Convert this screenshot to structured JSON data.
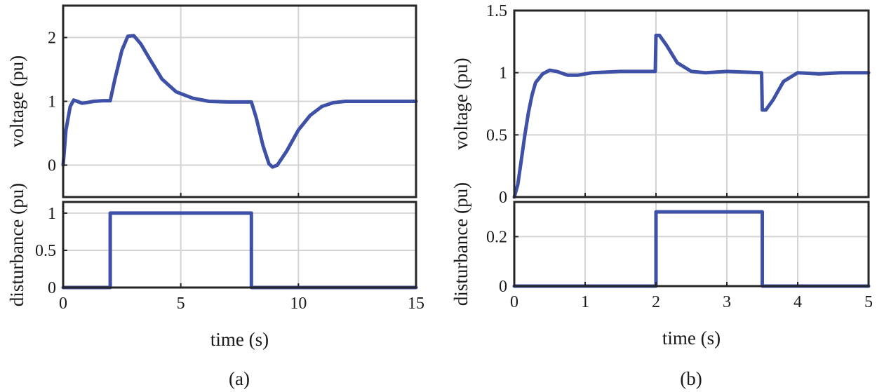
{
  "colors": {
    "line": "#3f51a6",
    "grid": "#d4d4d4",
    "frame": "#262626"
  },
  "chart_data": [
    {
      "type": "line",
      "panel": "(a)",
      "ylabel": "voltage (pu)",
      "xlim": [
        0,
        15
      ],
      "ylim": [
        -0.5,
        2.5
      ],
      "xticks": [
        0,
        5,
        10,
        15
      ],
      "yticks": [
        0,
        1,
        2
      ],
      "yticklabels": [
        "0",
        "1",
        "2"
      ],
      "grid": true,
      "series": [
        {
          "values": [
            [
              0,
              0
            ],
            [
              0.12,
              0.55
            ],
            [
              0.3,
              0.92
            ],
            [
              0.45,
              1.02
            ],
            [
              0.6,
              1.0
            ],
            [
              0.8,
              0.97
            ],
            [
              1.0,
              0.98
            ],
            [
              1.3,
              1.0
            ],
            [
              1.7,
              1.01
            ],
            [
              2.0,
              1.01
            ],
            [
              2.2,
              1.35
            ],
            [
              2.5,
              1.8
            ],
            [
              2.75,
              2.02
            ],
            [
              3.0,
              2.03
            ],
            [
              3.3,
              1.9
            ],
            [
              3.7,
              1.65
            ],
            [
              4.2,
              1.35
            ],
            [
              4.8,
              1.15
            ],
            [
              5.5,
              1.05
            ],
            [
              6.2,
              1.0
            ],
            [
              7.0,
              0.99
            ],
            [
              7.6,
              0.99
            ],
            [
              8.0,
              0.99
            ],
            [
              8.2,
              0.75
            ],
            [
              8.5,
              0.3
            ],
            [
              8.75,
              0.02
            ],
            [
              8.9,
              -0.03
            ],
            [
              9.1,
              0.0
            ],
            [
              9.5,
              0.22
            ],
            [
              10.0,
              0.55
            ],
            [
              10.5,
              0.78
            ],
            [
              11.0,
              0.92
            ],
            [
              11.5,
              0.98
            ],
            [
              12.0,
              1.0
            ],
            [
              13.0,
              1.0
            ],
            [
              15.0,
              1.0
            ]
          ]
        }
      ]
    },
    {
      "type": "line",
      "panel": "(a)",
      "xlabel": "time (s)",
      "ylabel": "disturbance (pu)",
      "xlim": [
        0,
        15
      ],
      "ylim": [
        0,
        1.15
      ],
      "xticks": [
        0,
        5,
        10,
        15
      ],
      "xticklabels": [
        "0",
        "5",
        "10",
        "15"
      ],
      "yticks": [
        0,
        0.5,
        1
      ],
      "yticklabels": [
        "0",
        "0.5",
        "1"
      ],
      "grid": true,
      "series": [
        {
          "values": [
            [
              0,
              0
            ],
            [
              2,
              0
            ],
            [
              2,
              1
            ],
            [
              8,
              1
            ],
            [
              8,
              0
            ],
            [
              15,
              0
            ]
          ]
        }
      ]
    },
    {
      "type": "line",
      "panel": "(b)",
      "ylabel": "voltage (pu)",
      "xlim": [
        0,
        5
      ],
      "ylim": [
        0,
        1.5
      ],
      "xticks": [
        0,
        1,
        2,
        3,
        4,
        5
      ],
      "yticks": [
        0,
        0.5,
        1,
        1.5
      ],
      "yticklabels": [
        "0",
        "0.5",
        "1",
        "1.5"
      ],
      "grid": true,
      "series": [
        {
          "values": [
            [
              0,
              0
            ],
            [
              0.05,
              0.1
            ],
            [
              0.1,
              0.3
            ],
            [
              0.15,
              0.5
            ],
            [
              0.2,
              0.68
            ],
            [
              0.25,
              0.82
            ],
            [
              0.3,
              0.92
            ],
            [
              0.4,
              0.99
            ],
            [
              0.5,
              1.02
            ],
            [
              0.6,
              1.01
            ],
            [
              0.75,
              0.98
            ],
            [
              0.9,
              0.98
            ],
            [
              1.1,
              1.0
            ],
            [
              1.5,
              1.01
            ],
            [
              1.99,
              1.01
            ],
            [
              2.0,
              1.3
            ],
            [
              2.05,
              1.3
            ],
            [
              2.15,
              1.22
            ],
            [
              2.3,
              1.08
            ],
            [
              2.5,
              1.01
            ],
            [
              2.7,
              1.0
            ],
            [
              3.0,
              1.01
            ],
            [
              3.49,
              1.0
            ],
            [
              3.5,
              0.7
            ],
            [
              3.55,
              0.7
            ],
            [
              3.65,
              0.78
            ],
            [
              3.8,
              0.93
            ],
            [
              4.0,
              1.0
            ],
            [
              4.3,
              0.99
            ],
            [
              4.6,
              1.0
            ],
            [
              5.0,
              1.0
            ]
          ]
        }
      ]
    },
    {
      "type": "line",
      "panel": "(b)",
      "xlabel": "time (s)",
      "ylabel": "disturbance (pu)",
      "xlim": [
        0,
        5
      ],
      "ylim": [
        0,
        0.34
      ],
      "xticks": [
        0,
        1,
        2,
        3,
        4,
        5
      ],
      "xticklabels": [
        "0",
        "1",
        "2",
        "3",
        "4",
        "5"
      ],
      "yticks": [
        0,
        0.2
      ],
      "yticklabels": [
        "0",
        "0.2"
      ],
      "grid": true,
      "series": [
        {
          "values": [
            [
              0,
              0
            ],
            [
              2,
              0
            ],
            [
              2,
              0.3
            ],
            [
              3.5,
              0.3
            ],
            [
              3.5,
              0
            ],
            [
              5,
              0
            ]
          ]
        }
      ]
    }
  ],
  "captions": {
    "a": "(a)",
    "b": "(b)"
  }
}
